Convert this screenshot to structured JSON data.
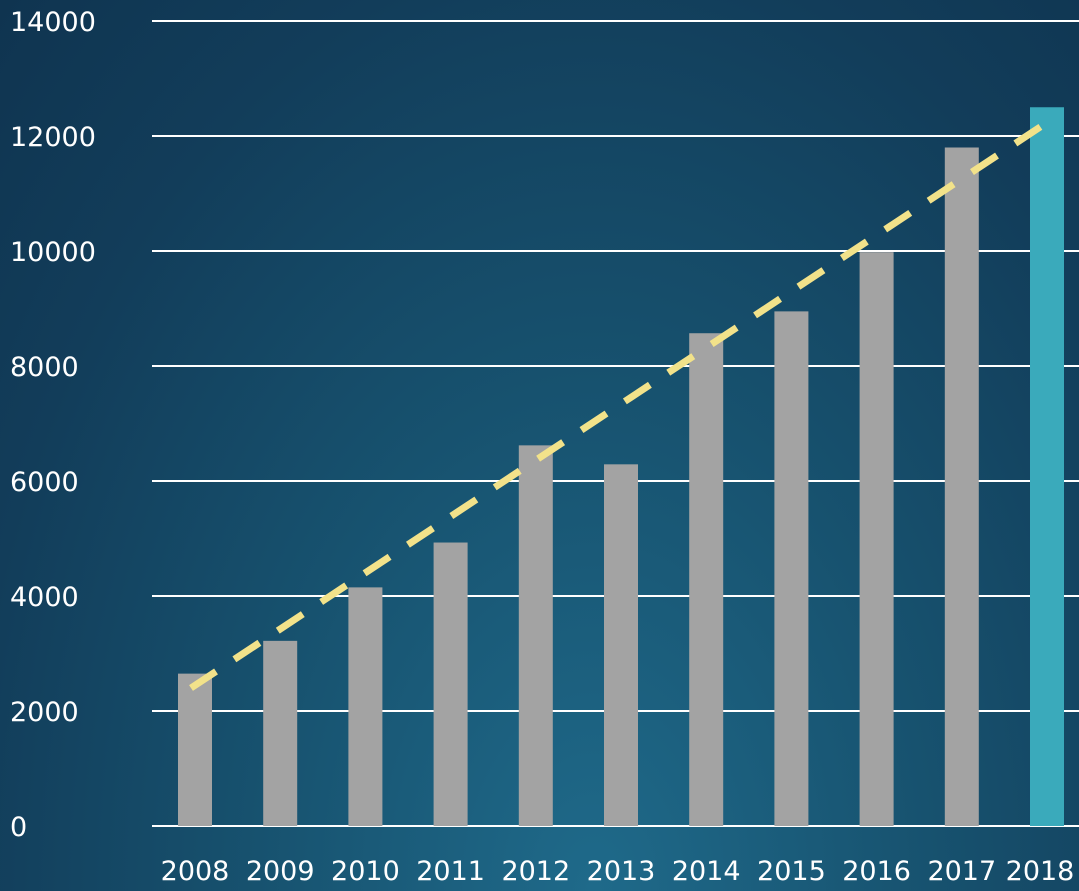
{
  "chart_data": {
    "type": "bar",
    "title": "",
    "xlabel": "",
    "ylabel": "",
    "categories": [
      "2008",
      "2009",
      "2010",
      "2011",
      "2012",
      "2013",
      "2014",
      "2015",
      "2016",
      "2017",
      "2018"
    ],
    "values": [
      2650,
      3220,
      4150,
      4930,
      6620,
      6290,
      8570,
      8950,
      9980,
      11800,
      12500
    ],
    "highlight_category": "2018",
    "bar_color": "#a3a3a3",
    "highlight_color": "#3aaabb",
    "gridline_color": "#ffffff",
    "trendline": {
      "style": "dashed",
      "color": "#f2e28a",
      "start": {
        "x": "2008",
        "y": 2400
      },
      "end": {
        "x": "2018",
        "y": 12200
      }
    },
    "ylim": [
      0,
      14000
    ],
    "yticks": [
      0,
      2000,
      4000,
      6000,
      8000,
      10000,
      12000,
      14000
    ],
    "grid": true,
    "legend": "none"
  }
}
